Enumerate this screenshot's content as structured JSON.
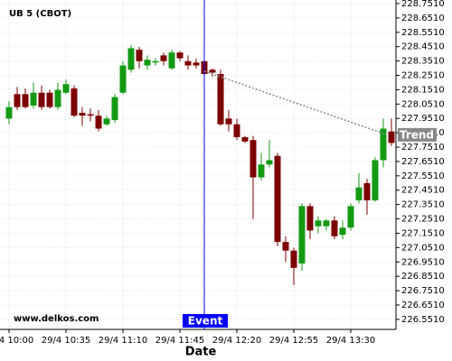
{
  "chart_data": {
    "type": "candlestick",
    "title": "UB 5 (CBOT)",
    "watermark": "www.delkos.com",
    "x_label": "Date",
    "categories": [
      "29/4 10:00",
      null,
      null,
      null,
      null,
      null,
      null,
      "29/4 10:35",
      null,
      null,
      null,
      null,
      null,
      null,
      "29/4 11:10",
      null,
      null,
      null,
      null,
      null,
      null,
      "29/4 11:45",
      null,
      null,
      null,
      null,
      null,
      null,
      "29/4 12:20",
      null,
      null,
      null,
      null,
      null,
      null,
      "29/4 12:55",
      null,
      null,
      null,
      null,
      null,
      null,
      "29/4 13:30",
      null,
      null,
      null,
      null,
      null
    ],
    "open": [
      227.95,
      228.12,
      228.12,
      228.04,
      228.13,
      228.13,
      228.03,
      228.13,
      228.16,
      227.99,
      227.98,
      227.97,
      227.91,
      227.94,
      228.13,
      228.29,
      228.43,
      228.32,
      228.34,
      228.39,
      228.3,
      228.41,
      228.35,
      228.34,
      228.35,
      228.29,
      228.26,
      227.95,
      227.91,
      227.82,
      227.8,
      227.54,
      227.63,
      227.69,
      227.09,
      227.03,
      226.94,
      227.34,
      227.2,
      227.2,
      227.24,
      227.14,
      227.19,
      227.38,
      227.5,
      227.38,
      227.66,
      227.86
    ],
    "high": [
      228.07,
      228.17,
      228.16,
      228.2,
      228.18,
      228.15,
      228.2,
      228.22,
      228.18,
      228.03,
      228.02,
      228.01,
      227.97,
      228.12,
      228.35,
      228.46,
      228.45,
      228.39,
      228.37,
      228.41,
      228.43,
      228.42,
      228.39,
      228.37,
      228.37,
      228.3,
      228.29,
      228.01,
      227.95,
      227.83,
      227.83,
      227.71,
      227.8,
      227.71,
      227.13,
      227.05,
      227.36,
      227.36,
      227.27,
      227.25,
      227.27,
      227.24,
      227.36,
      227.57,
      227.53,
      227.68,
      227.95,
      227.95
    ],
    "low": [
      227.91,
      228.01,
      228.02,
      228.02,
      228.01,
      228.02,
      228.01,
      228.12,
      227.96,
      227.9,
      227.93,
      227.86,
      227.9,
      227.92,
      228.12,
      228.27,
      228.3,
      228.29,
      228.32,
      228.32,
      228.29,
      228.35,
      228.29,
      228.3,
      228.24,
      228.24,
      227.9,
      227.86,
      227.8,
      227.78,
      227.25,
      227.52,
      227.61,
      227.06,
      226.95,
      226.79,
      226.89,
      227.11,
      227.15,
      227.17,
      227.11,
      227.11,
      227.17,
      227.36,
      227.28,
      227.37,
      227.61,
      227.76
    ],
    "close": [
      228.03,
      228.03,
      228.03,
      228.13,
      228.03,
      228.03,
      228.15,
      228.19,
      227.97,
      227.97,
      227.97,
      227.88,
      227.95,
      228.1,
      228.32,
      228.44,
      228.35,
      228.36,
      228.35,
      228.35,
      228.41,
      228.37,
      228.32,
      228.32,
      228.26,
      228.27,
      227.91,
      227.91,
      227.82,
      227.79,
      227.54,
      227.63,
      227.66,
      227.09,
      227.03,
      226.91,
      227.34,
      227.17,
      227.24,
      227.24,
      227.13,
      227.19,
      227.34,
      227.47,
      227.38,
      227.66,
      227.88,
      227.78
    ],
    "up_color": "#139a13",
    "down_color": "#7d0000",
    "ylim": [
      226.481,
      228.776
    ],
    "yticks": [
      {
        "value": 228.751,
        "label": "228.7510"
      },
      {
        "value": 228.651,
        "label": "228.6510"
      },
      {
        "value": 228.551,
        "label": "228.5510"
      },
      {
        "value": 228.451,
        "label": "228.4510"
      },
      {
        "value": 228.351,
        "label": "228.3510"
      },
      {
        "value": 228.251,
        "label": "228.2510"
      },
      {
        "value": 228.151,
        "label": "228.1510"
      },
      {
        "value": 228.051,
        "label": "228.0510"
      },
      {
        "value": 227.951,
        "label": "227.9510"
      },
      {
        "value": 227.851,
        "label": "227.8510"
      },
      {
        "value": 227.751,
        "label": "227.7510"
      },
      {
        "value": 227.651,
        "label": "227.6510"
      },
      {
        "value": 227.551,
        "label": "227.5510"
      },
      {
        "value": 227.451,
        "label": "227.4510"
      },
      {
        "value": 227.351,
        "label": "227.3510"
      },
      {
        "value": 227.251,
        "label": "227.2510"
      },
      {
        "value": 227.151,
        "label": "227.1510"
      },
      {
        "value": 227.051,
        "label": "227.0510"
      },
      {
        "value": 226.951,
        "label": "226.9510"
      },
      {
        "value": 226.851,
        "label": "226.8510"
      },
      {
        "value": 226.751,
        "label": "226.7510"
      },
      {
        "value": 226.651,
        "label": "226.6510"
      },
      {
        "value": 226.551,
        "label": "226.5510"
      }
    ],
    "grid": true,
    "event": {
      "label": "Event",
      "color": "#0000ff"
    },
    "trend": {
      "label": "Trend",
      "values": [
        228.28,
        227.84
      ],
      "color": "#888888"
    }
  }
}
